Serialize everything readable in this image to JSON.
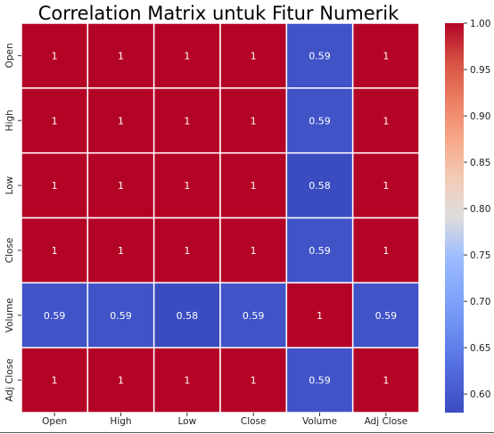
{
  "chart_data": {
    "type": "heatmap",
    "title": "Correlation Matrix untuk Fitur Numerik",
    "xlabel": "",
    "ylabel": "",
    "categories_x": [
      "Open",
      "High",
      "Low",
      "Close",
      "Volume",
      "Adj Close"
    ],
    "categories_y": [
      "Open",
      "High",
      "Low",
      "Close",
      "Volume",
      "Adj Close"
    ],
    "values": [
      [
        1,
        1,
        1,
        1,
        0.59,
        1
      ],
      [
        1,
        1,
        1,
        1,
        0.59,
        1
      ],
      [
        1,
        1,
        1,
        1,
        0.58,
        1
      ],
      [
        1,
        1,
        1,
        1,
        0.59,
        1
      ],
      [
        0.59,
        0.59,
        0.58,
        0.59,
        1,
        0.59
      ],
      [
        1,
        1,
        1,
        1,
        0.59,
        1
      ]
    ],
    "colormap": "coolwarm",
    "vmin": 0.58,
    "vmax": 1.0,
    "colorbar": {
      "placement": "right",
      "ticks": [
        0.6,
        0.65,
        0.7,
        0.75,
        0.8,
        0.85,
        0.9,
        0.95,
        1.0
      ],
      "tick_labels": [
        "0.60",
        "0.65",
        "0.70",
        "0.75",
        "0.80",
        "0.85",
        "0.90",
        "0.95",
        "1.00"
      ]
    },
    "annotations": true,
    "grid": false,
    "colors": {
      "high": "#b40426",
      "mid": "#dddddd",
      "low": "#3b4cc0",
      "cell_border": "#ffffff",
      "text_dark": "#222222",
      "annot_text": "#ffffff"
    }
  }
}
